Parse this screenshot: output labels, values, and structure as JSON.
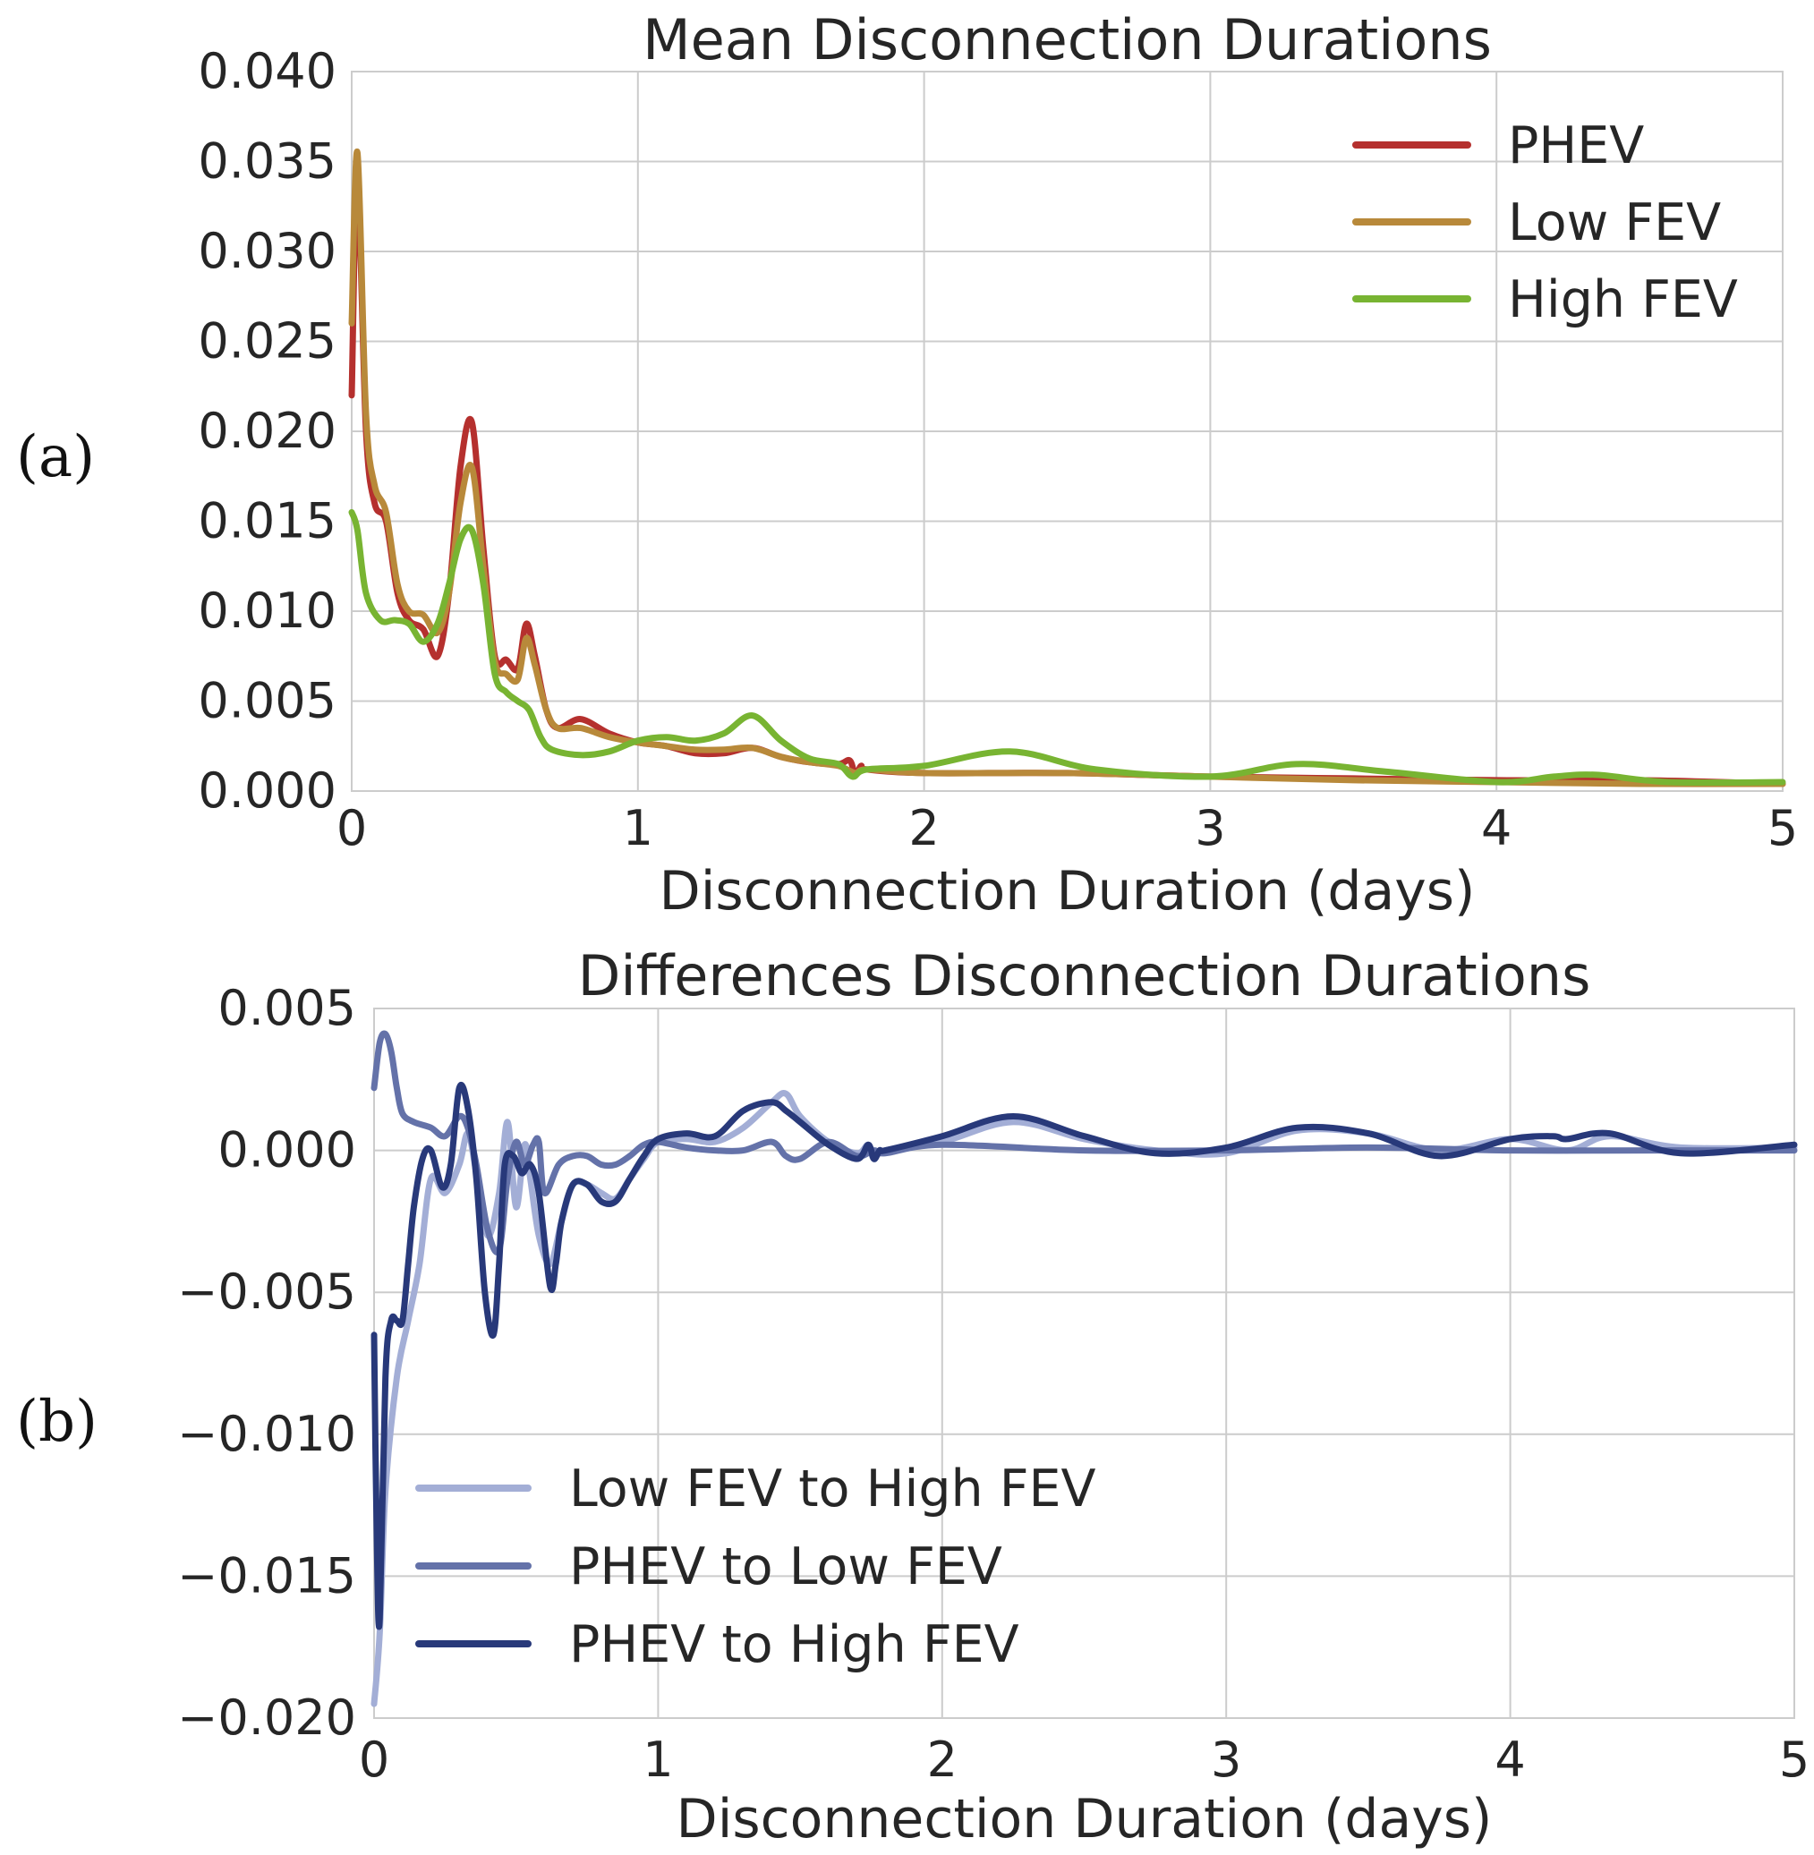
{
  "panel_labels": [
    "(a)",
    "(b)"
  ],
  "chart_data": [
    {
      "type": "line",
      "title": "Mean Disconnection Durations",
      "xlabel": "Disconnection Duration (days)",
      "ylabel": "",
      "xlim": [
        0,
        5
      ],
      "ylim": [
        0,
        0.04
      ],
      "xticks": [
        0,
        1,
        2,
        3,
        4,
        5
      ],
      "xtick_labels": [
        "0",
        "1",
        "2",
        "3",
        "4",
        "5"
      ],
      "yticks": [
        0,
        0.005,
        0.01,
        0.015,
        0.02,
        0.025,
        0.03,
        0.035,
        0.04
      ],
      "ytick_labels": [
        "0.000",
        "0.005",
        "0.010",
        "0.015",
        "0.020",
        "0.025",
        "0.030",
        "0.035",
        "0.040"
      ],
      "grid": true,
      "legend_position": "top-right",
      "series": [
        {
          "name": "PHEV",
          "color": "#b5302e",
          "x": [
            0.0,
            0.02,
            0.05,
            0.08,
            0.12,
            0.16,
            0.2,
            0.25,
            0.3,
            0.34,
            0.38,
            0.42,
            0.46,
            0.5,
            0.54,
            0.58,
            0.61,
            0.64,
            0.68,
            0.72,
            0.8,
            0.9,
            1.0,
            1.1,
            1.2,
            1.3,
            1.4,
            1.5,
            1.6,
            1.7,
            1.74,
            1.76,
            1.78,
            1.8,
            2.0,
            2.5,
            3.0,
            3.5,
            4.0,
            4.5,
            5.0
          ],
          "y": [
            0.022,
            0.034,
            0.02,
            0.016,
            0.015,
            0.011,
            0.0095,
            0.009,
            0.0075,
            0.011,
            0.018,
            0.0205,
            0.0135,
            0.0075,
            0.0073,
            0.0068,
            0.0093,
            0.0075,
            0.0045,
            0.0035,
            0.004,
            0.0032,
            0.0027,
            0.0025,
            0.0021,
            0.0021,
            0.0024,
            0.0019,
            0.0016,
            0.0015,
            0.0017,
            0.0009,
            0.0014,
            0.0012,
            0.001,
            0.001,
            0.0008,
            0.0007,
            0.0006,
            0.0006,
            0.0004
          ]
        },
        {
          "name": "Low FEV",
          "color": "#b8893a",
          "x": [
            0.0,
            0.02,
            0.05,
            0.08,
            0.12,
            0.16,
            0.2,
            0.25,
            0.3,
            0.34,
            0.38,
            0.42,
            0.46,
            0.5,
            0.54,
            0.58,
            0.61,
            0.64,
            0.68,
            0.72,
            0.8,
            0.9,
            1.0,
            1.1,
            1.2,
            1.3,
            1.4,
            1.5,
            1.6,
            1.7,
            1.76,
            1.8,
            2.0,
            2.5,
            3.0,
            3.5,
            4.0,
            4.5,
            5.0
          ],
          "y": [
            0.026,
            0.0355,
            0.021,
            0.017,
            0.0155,
            0.0115,
            0.01,
            0.0098,
            0.0088,
            0.011,
            0.016,
            0.018,
            0.0125,
            0.0072,
            0.0065,
            0.0062,
            0.0085,
            0.007,
            0.0045,
            0.0035,
            0.0035,
            0.003,
            0.0027,
            0.0025,
            0.0023,
            0.0023,
            0.0024,
            0.0019,
            0.0016,
            0.0014,
            0.001,
            0.0012,
            0.001,
            0.001,
            0.0008,
            0.0006,
            0.0005,
            0.0004,
            0.0004
          ]
        },
        {
          "name": "High FEV",
          "color": "#78b432",
          "x": [
            0.0,
            0.02,
            0.05,
            0.1,
            0.15,
            0.2,
            0.25,
            0.3,
            0.34,
            0.38,
            0.42,
            0.46,
            0.5,
            0.54,
            0.58,
            0.62,
            0.66,
            0.7,
            0.8,
            0.9,
            1.0,
            1.1,
            1.2,
            1.3,
            1.4,
            1.5,
            1.6,
            1.7,
            1.75,
            1.8,
            2.0,
            2.3,
            2.6,
            3.0,
            3.3,
            3.6,
            4.0,
            4.2,
            4.35,
            4.6,
            5.0
          ],
          "y": [
            0.0155,
            0.0145,
            0.011,
            0.0095,
            0.0095,
            0.0093,
            0.0083,
            0.0093,
            0.0115,
            0.014,
            0.0145,
            0.0115,
            0.0065,
            0.0055,
            0.005,
            0.0045,
            0.003,
            0.0023,
            0.002,
            0.0022,
            0.0028,
            0.003,
            0.0028,
            0.0032,
            0.0042,
            0.0028,
            0.0018,
            0.0015,
            0.0008,
            0.0012,
            0.0014,
            0.0022,
            0.0012,
            0.0008,
            0.0015,
            0.0011,
            0.0005,
            0.0008,
            0.0009,
            0.0005,
            0.0005
          ]
        }
      ]
    },
    {
      "type": "line",
      "title": "Differences Disconnection Durations",
      "xlabel": "Disconnection Duration (days)",
      "ylabel": "",
      "xlim": [
        0,
        5
      ],
      "ylim": [
        -0.02,
        0.005
      ],
      "xticks": [
        0,
        1,
        2,
        3,
        4,
        5
      ],
      "xtick_labels": [
        "0",
        "1",
        "2",
        "3",
        "4",
        "5"
      ],
      "yticks": [
        -0.02,
        -0.015,
        -0.01,
        -0.005,
        0,
        0.005
      ],
      "ytick_labels": [
        "−0.020",
        "−0.015",
        "−0.010",
        "−0.005",
        "0.000",
        "0.005"
      ],
      "grid": true,
      "legend_position": "bottom-left",
      "series": [
        {
          "name": "Low FEV to High FEV",
          "color": "#a3aed6",
          "x": [
            0.0,
            0.02,
            0.04,
            0.08,
            0.12,
            0.16,
            0.2,
            0.25,
            0.3,
            0.33,
            0.36,
            0.4,
            0.44,
            0.47,
            0.5,
            0.53,
            0.55,
            0.58,
            0.62,
            0.66,
            0.7,
            0.75,
            0.8,
            0.85,
            0.9,
            0.95,
            1.0,
            1.1,
            1.2,
            1.3,
            1.4,
            1.45,
            1.5,
            1.6,
            1.7,
            1.74,
            1.76,
            1.8,
            2.0,
            2.25,
            2.5,
            2.75,
            3.0,
            3.25,
            3.5,
            3.75,
            4.0,
            4.2,
            4.35,
            4.6,
            5.0
          ],
          "y": [
            -0.0195,
            -0.017,
            -0.012,
            -0.008,
            -0.006,
            -0.004,
            -0.001,
            -0.0015,
            -0.0005,
            0.0006,
            -0.0008,
            -0.003,
            -0.0015,
            0.001,
            -0.002,
            0.0002,
            -0.001,
            -0.003,
            -0.004,
            -0.0025,
            -0.0012,
            -0.0012,
            -0.0015,
            -0.0017,
            -0.001,
            -0.0003,
            0.0003,
            0.0004,
            0.0003,
            0.0008,
            0.0017,
            0.002,
            0.0012,
            0.0003,
            -0.0001,
            0.0002,
            -0.0003,
            0.0,
            0.0003,
            0.001,
            0.0004,
            0.0,
            -0.0001,
            0.0007,
            0.0006,
            0.0,
            0.0004,
            0.0,
            0.0005,
            0.0001,
            0.0001
          ]
        },
        {
          "name": "PHEV to Low FEV",
          "color": "#6472a9",
          "x": [
            0.0,
            0.02,
            0.04,
            0.06,
            0.08,
            0.1,
            0.14,
            0.2,
            0.25,
            0.3,
            0.33,
            0.36,
            0.4,
            0.44,
            0.47,
            0.5,
            0.53,
            0.56,
            0.58,
            0.6,
            0.65,
            0.7,
            0.75,
            0.8,
            0.85,
            0.9,
            0.95,
            1.0,
            1.1,
            1.2,
            1.3,
            1.4,
            1.45,
            1.5,
            1.6,
            1.7,
            1.76,
            1.8,
            2.0,
            2.5,
            3.0,
            3.5,
            4.0,
            4.5,
            5.0
          ],
          "y": [
            0.0022,
            0.0038,
            0.0041,
            0.0035,
            0.0022,
            0.0013,
            0.001,
            0.0008,
            0.0005,
            0.0012,
            0.0008,
            -0.0005,
            -0.0028,
            -0.0035,
            -0.001,
            0.0003,
            -0.0005,
            0.0002,
            0.0003,
            -0.0015,
            -0.0005,
            -0.0002,
            -0.0002,
            -0.0005,
            -0.0005,
            -0.0002,
            0.0002,
            0.0003,
            0.0001,
            0.0,
            0.0,
            0.0003,
            -0.0002,
            -0.0003,
            0.0003,
            -0.0002,
            0.0,
            -0.0001,
            0.0002,
            0.0,
            0.0,
            0.0001,
            0.0,
            0.0,
            0.0
          ]
        },
        {
          "name": "PHEV to High FEV",
          "color": "#28397a",
          "x": [
            0.0,
            0.01,
            0.02,
            0.04,
            0.06,
            0.08,
            0.1,
            0.12,
            0.14,
            0.17,
            0.2,
            0.24,
            0.27,
            0.3,
            0.33,
            0.36,
            0.39,
            0.42,
            0.44,
            0.46,
            0.49,
            0.52,
            0.55,
            0.58,
            0.62,
            0.64,
            0.66,
            0.7,
            0.75,
            0.8,
            0.85,
            0.9,
            0.95,
            1.0,
            1.1,
            1.2,
            1.3,
            1.4,
            1.45,
            1.5,
            1.6,
            1.7,
            1.74,
            1.76,
            1.78,
            1.8,
            2.0,
            2.25,
            2.5,
            2.75,
            3.0,
            3.25,
            3.5,
            3.75,
            4.0,
            4.15,
            4.2,
            4.35,
            4.6,
            5.0
          ],
          "y": [
            -0.0065,
            -0.014,
            -0.0165,
            -0.008,
            -0.006,
            -0.006,
            -0.006,
            -0.004,
            -0.002,
            -0.0003,
            0.0,
            -0.0013,
            -0.0005,
            0.0022,
            0.0015,
            -0.001,
            -0.005,
            -0.0065,
            -0.004,
            -0.0005,
            -0.0002,
            -0.0008,
            -0.0005,
            -0.0015,
            -0.0048,
            -0.004,
            -0.0025,
            -0.0012,
            -0.0012,
            -0.0018,
            -0.0018,
            -0.001,
            -0.0002,
            0.0004,
            0.0006,
            0.0005,
            0.0014,
            0.0017,
            0.0014,
            0.001,
            0.0002,
            -0.0003,
            0.0002,
            -0.0003,
            0.0,
            0.0,
            0.0005,
            0.0012,
            0.0005,
            -0.0001,
            0.0001,
            0.0008,
            0.0006,
            -0.0002,
            0.0004,
            0.0005,
            0.0004,
            0.0006,
            -0.0001,
            0.0002
          ]
        }
      ]
    }
  ]
}
